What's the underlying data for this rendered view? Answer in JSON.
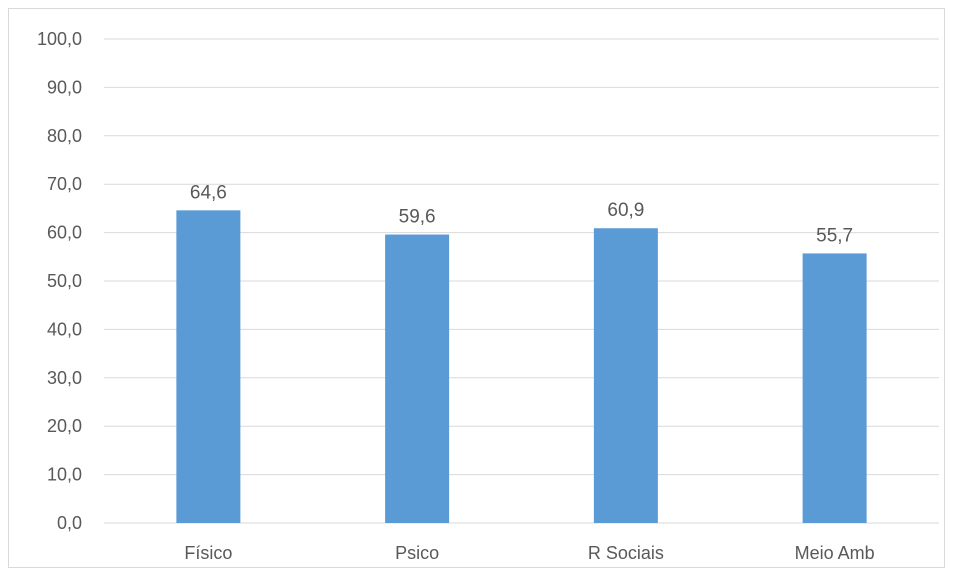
{
  "chart_data": {
    "type": "bar",
    "title": "",
    "xlabel": "",
    "ylabel": "",
    "categories": [
      "Físico",
      "Psico",
      "R Sociais",
      "Meio Amb"
    ],
    "values": [
      64.6,
      59.6,
      60.9,
      55.7
    ],
    "value_labels": [
      "64,6",
      "59,6",
      "60,9",
      "55,7"
    ],
    "ylim": [
      0,
      100
    ],
    "yticks": [
      0,
      10,
      20,
      30,
      40,
      50,
      60,
      70,
      80,
      90,
      100
    ],
    "ytick_labels": [
      "0,0",
      "10,0",
      "20,0",
      "30,0",
      "40,0",
      "50,0",
      "60,0",
      "70,0",
      "80,0",
      "90,0",
      "100,0"
    ],
    "grid": true,
    "legend": "none",
    "bar_color": "#5b9bd5",
    "grid_color": "#d9d9d9",
    "text_color": "#595959"
  }
}
